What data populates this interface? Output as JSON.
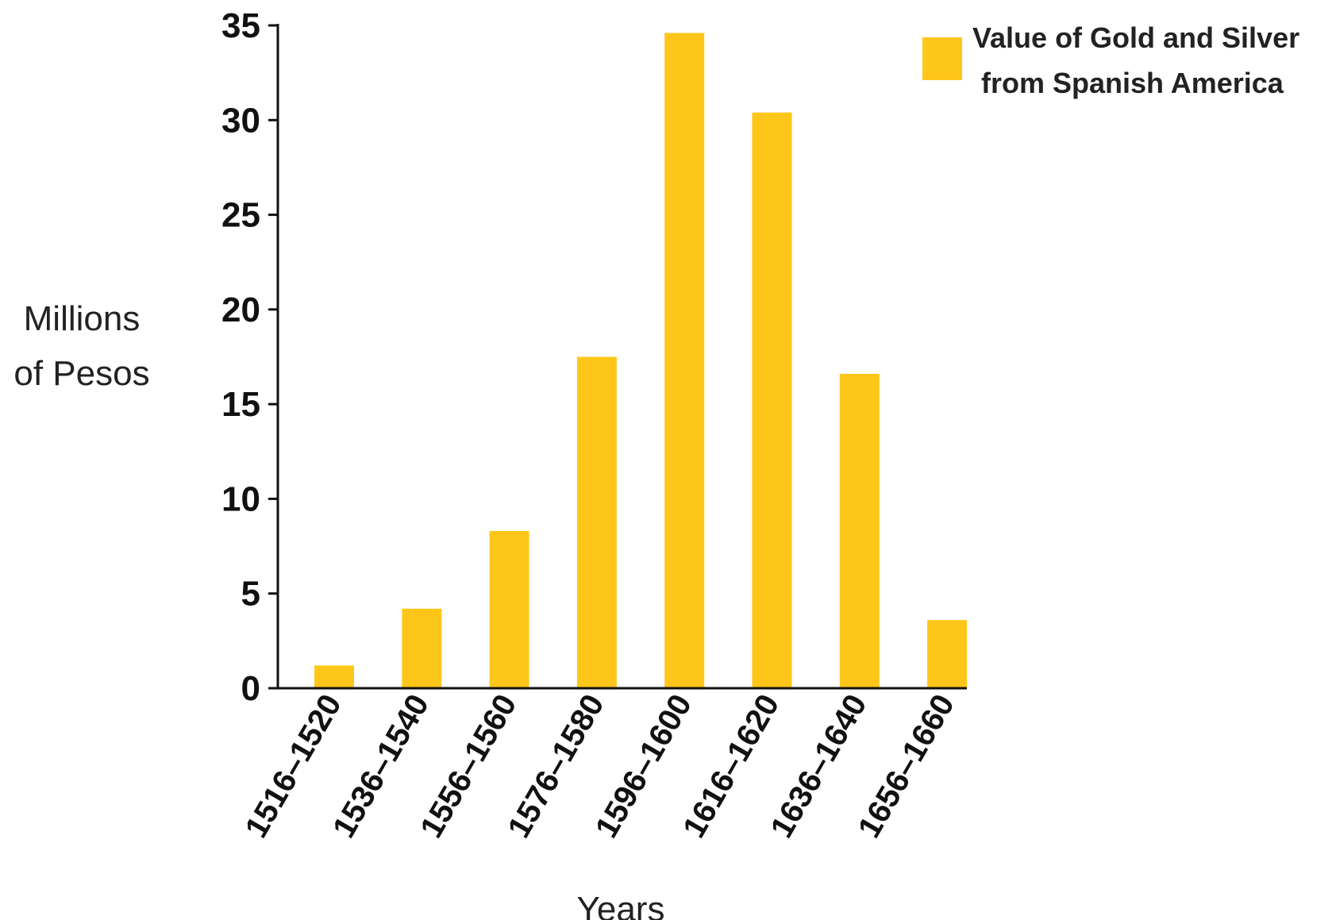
{
  "chart_data": {
    "type": "bar",
    "categories": [
      "1516–1520",
      "1536–1540",
      "1556–1560",
      "1576–1580",
      "1596–1600",
      "1616–1620",
      "1636–1640",
      "1656–1660"
    ],
    "series": [
      {
        "name": "Value of Gold and Silver from Spanish America",
        "legend_lines": [
          "Value of Gold and Silver",
          "from Spanish America"
        ],
        "values": [
          1.2,
          4.2,
          8.3,
          17.5,
          34.6,
          30.4,
          16.6,
          3.6
        ],
        "color": "#FFC61A"
      }
    ],
    "xlabel": "Years",
    "ylabel_lines": [
      "Millions",
      "of Pesos"
    ],
    "ylim": [
      0,
      35
    ],
    "yticks": [
      0,
      5,
      10,
      15,
      20,
      25,
      30,
      35
    ],
    "grid": false,
    "legend_position": "top-right"
  }
}
